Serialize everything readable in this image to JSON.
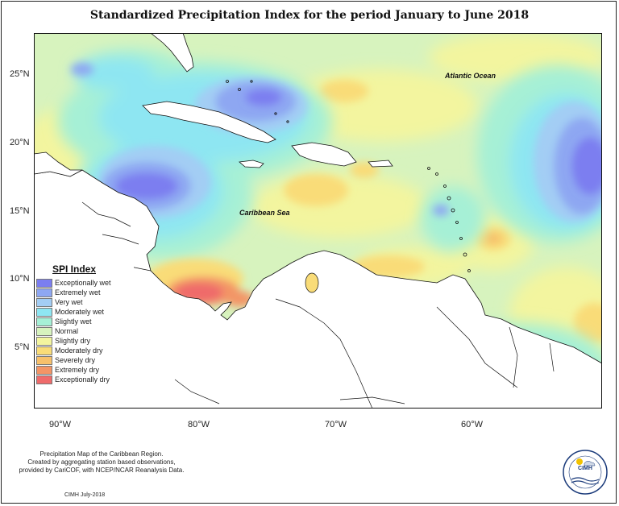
{
  "title": "Standardized Precipitation Index for the period January to June 2018",
  "map_labels": {
    "atlantic": "Atlantic Ocean",
    "caribbean": "Caribbean Sea"
  },
  "y_ticks": [
    "25°N",
    "20°N",
    "15°N",
    "10°N",
    "5°N"
  ],
  "x_ticks": [
    "90°W",
    "80°W",
    "70°W",
    "60°W"
  ],
  "legend": {
    "title": "SPI Index",
    "items": [
      {
        "label": "Exceptionally wet",
        "color": "#7b7ef0"
      },
      {
        "label": "Extremely wet",
        "color": "#8ea7f2"
      },
      {
        "label": "Very wet",
        "color": "#a3cdf4"
      },
      {
        "label": "Moderately wet",
        "color": "#8ee6f2"
      },
      {
        "label": "Slightly wet",
        "color": "#a6f0d6"
      },
      {
        "label": "Normal",
        "color": "#d7f3be"
      },
      {
        "label": "Slightly dry",
        "color": "#f3f59f"
      },
      {
        "label": "Moderately dry",
        "color": "#f9dc78"
      },
      {
        "label": "Severely dry",
        "color": "#f7c06b"
      },
      {
        "label": "Extremely dry",
        "color": "#f39566"
      },
      {
        "label": "Exceptionally dry",
        "color": "#ef6b6b"
      }
    ]
  },
  "notes": {
    "line1": "Precipitation Map of the Caribbean Region.",
    "line2": "Created by aggregating station based observations,",
    "line3": "provided by CariCOF, with NCEP/NCAR Reanalysis Data.",
    "credit": "CIMH July-2018"
  },
  "logo": {
    "text": "CIMH"
  }
}
